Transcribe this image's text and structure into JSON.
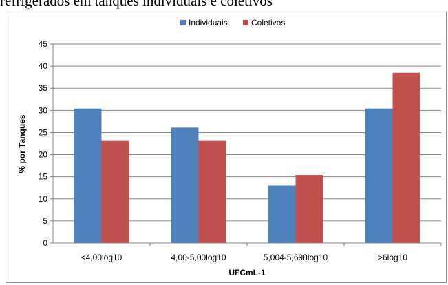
{
  "caption": "refrigerados em tanques individuais e coletivos",
  "chart_data": {
    "type": "bar",
    "categories": [
      "<4,00log10",
      "4,00-5,00log10",
      "5,004-5,698log10",
      ">6log10"
    ],
    "series": [
      {
        "name": "Individuais",
        "values": [
          30.4,
          26.1,
          13.0,
          30.4
        ]
      },
      {
        "name": "Coletivos",
        "values": [
          23.1,
          23.1,
          15.4,
          38.5
        ]
      }
    ],
    "colors": [
      "#4f81bd",
      "#c0504d"
    ],
    "xlabel": "UFCmL-1",
    "ylabel": "% por Tanques",
    "ylim": [
      0,
      45
    ],
    "yticks": [
      0,
      5,
      10,
      15,
      20,
      25,
      30,
      35,
      40,
      45
    ],
    "grid": true,
    "legend": "top"
  }
}
